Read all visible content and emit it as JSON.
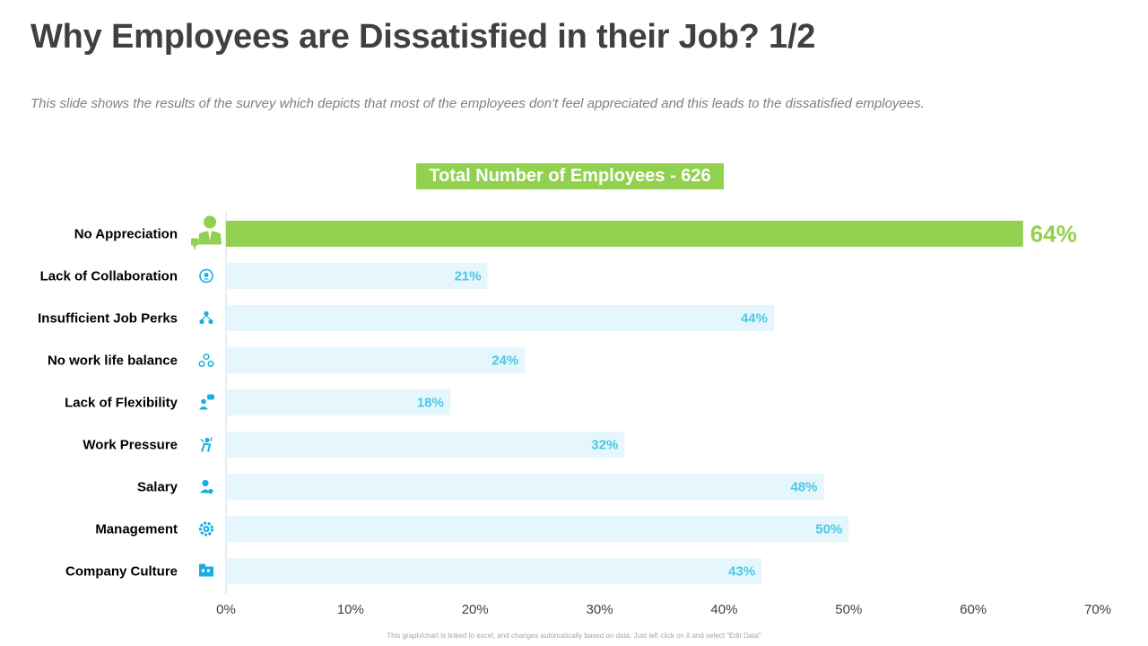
{
  "slide": {
    "title": "Why Employees are Dissatisfied in their Job? 1/2",
    "subtitle": "This slide shows the results of the survey which depicts that most of the employees don't feel appreciated and this leads to the dissatisfied employees.",
    "banner": "Total Number of Employees - 626",
    "footer": "This graph/chart is linked to excel, and changes automatically based on data. Just left click on it and select \"Edit Data\""
  },
  "colors": {
    "highlight": "#92d050",
    "bar": "#e5f6fd",
    "label": "#4ac9e3",
    "icon": "#1aaee0",
    "title": "#404040"
  },
  "chart_data": {
    "type": "bar",
    "orientation": "horizontal",
    "title": "Total Number of Employees - 626",
    "categories": [
      "No Appreciation",
      "Lack of Collaboration",
      "Insufficient Job Perks",
      "No work life balance",
      "Lack of Flexibility",
      "Work Pressure",
      "Salary",
      "Management",
      "Company Culture"
    ],
    "values": [
      64,
      21,
      44,
      24,
      18,
      32,
      48,
      50,
      43
    ],
    "value_labels": [
      "64%",
      "21%",
      "44%",
      "24%",
      "18%",
      "32%",
      "48%",
      "50%",
      "43%"
    ],
    "icons": [
      "dissatisfied-employee-icon",
      "collaboration-icon",
      "perks-hierarchy-icon",
      "work-life-balance-icon",
      "flexibility-chat-icon",
      "pressure-icon",
      "salary-person-icon",
      "management-gear-icon",
      "company-building-icon"
    ],
    "highlight_index": 0,
    "xlim": [
      0,
      70
    ],
    "xticks": [
      "0%",
      "10%",
      "20%",
      "30%",
      "40%",
      "50%",
      "60%",
      "70%"
    ],
    "xlabel": "",
    "ylabel": "",
    "grid": false
  }
}
